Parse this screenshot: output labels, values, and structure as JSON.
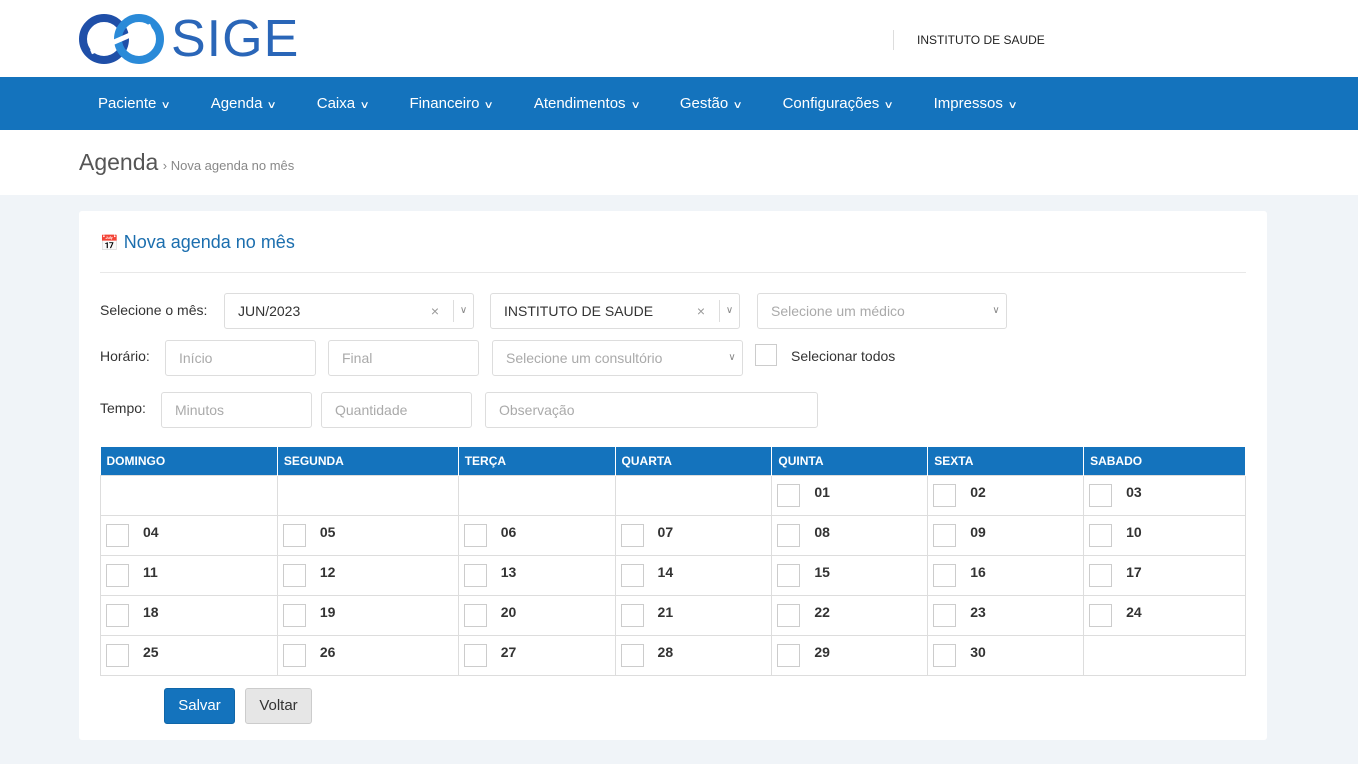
{
  "header": {
    "logo_text": "SIGE",
    "institution": "INSTITUTO DE SAUDE"
  },
  "nav": [
    "Paciente",
    "Agenda",
    "Caixa",
    "Financeiro",
    "Atendimentos",
    "Gestão",
    "Configurações",
    "Impressos"
  ],
  "breadcrumb": {
    "title": "Agenda",
    "sub": "› Nova agenda no mês"
  },
  "form": {
    "title": "Nova agenda no mês",
    "month_label": "Selecione o mês:",
    "month_value": "JUN/2023",
    "institution_value": "INSTITUTO DE SAUDE",
    "doctor_placeholder": "Selecione um médico",
    "time_label": "Horário:",
    "start_placeholder": "Início",
    "end_placeholder": "Final",
    "office_placeholder": "Selecione um consultório",
    "select_all_label": "Selecionar todos",
    "tempo_label": "Tempo:",
    "minutes_placeholder": "Minutos",
    "quantity_placeholder": "Quantidade",
    "obs_placeholder": "Observação"
  },
  "calendar": {
    "days": [
      "DOMINGO",
      "SEGUNDA",
      "TERÇA",
      "QUARTA",
      "QUINTA",
      "SEXTA",
      "SABADO"
    ],
    "weeks": [
      [
        "",
        "",
        "",
        "",
        "01",
        "02",
        "03"
      ],
      [
        "04",
        "05",
        "06",
        "07",
        "08",
        "09",
        "10"
      ],
      [
        "11",
        "12",
        "13",
        "14",
        "15",
        "16",
        "17"
      ],
      [
        "18",
        "19",
        "20",
        "21",
        "22",
        "23",
        "24"
      ],
      [
        "25",
        "26",
        "27",
        "28",
        "29",
        "30",
        ""
      ]
    ]
  },
  "buttons": {
    "save": "Salvar",
    "back": "Voltar"
  },
  "colors": {
    "primary": "#1473bd"
  }
}
